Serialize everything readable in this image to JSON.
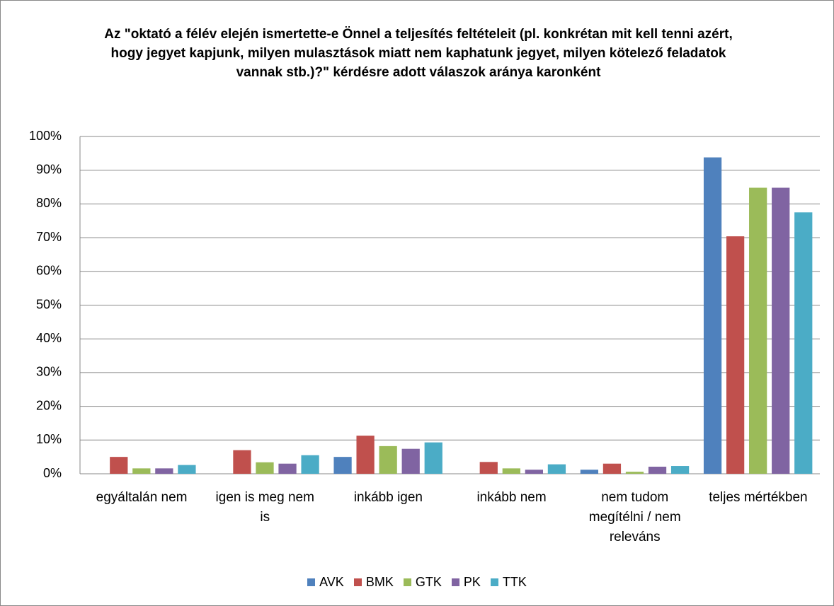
{
  "chart_data": {
    "type": "bar",
    "title": "Az \"oktató a félév elején ismertette-e Önnel a teljesítés feltételeit (pl. konkrétan mit kell tenni azért, hogy jegyet kapjunk, milyen mulasztások miatt nem kaphatunk jegyet, milyen kötelező feladatok vannak stb.)?\" kérdésre adott válaszok aránya karonként",
    "categories": [
      "egyáltalán nem",
      "igen is meg nem is",
      "inkább igen",
      "inkább nem",
      "nem tudom megítélni / nem releváns",
      "teljes mértékben"
    ],
    "series": [
      {
        "name": "AVK",
        "color": "#4f81bd",
        "values": [
          0,
          0,
          5,
          0,
          1.2,
          93.8
        ]
      },
      {
        "name": "BMK",
        "color": "#c0504d",
        "values": [
          5,
          7,
          11.3,
          3.5,
          3,
          70.4
        ]
      },
      {
        "name": "GTK",
        "color": "#9bbb59",
        "values": [
          1.6,
          3.4,
          8.2,
          1.6,
          0.6,
          84.8
        ]
      },
      {
        "name": "PK",
        "color": "#8064a2",
        "values": [
          1.6,
          3,
          7.4,
          1.2,
          2.1,
          84.8
        ]
      },
      {
        "name": "TTK",
        "color": "#4bacc6",
        "values": [
          2.6,
          5.5,
          9.3,
          2.8,
          2.3,
          77.5
        ]
      }
    ],
    "ylim": [
      0,
      100
    ],
    "yticks": [
      {
        "value": 0,
        "label": "0%"
      },
      {
        "value": 10,
        "label": "10%"
      },
      {
        "value": 20,
        "label": "20%"
      },
      {
        "value": 30,
        "label": "30%"
      },
      {
        "value": 40,
        "label": "40%"
      },
      {
        "value": 50,
        "label": "50%"
      },
      {
        "value": 60,
        "label": "60%"
      },
      {
        "value": 70,
        "label": "70%"
      },
      {
        "value": 80,
        "label": "80%"
      },
      {
        "value": 90,
        "label": "90%"
      },
      {
        "value": 100,
        "label": "100%"
      }
    ],
    "grid": true,
    "legend": "bottom"
  }
}
